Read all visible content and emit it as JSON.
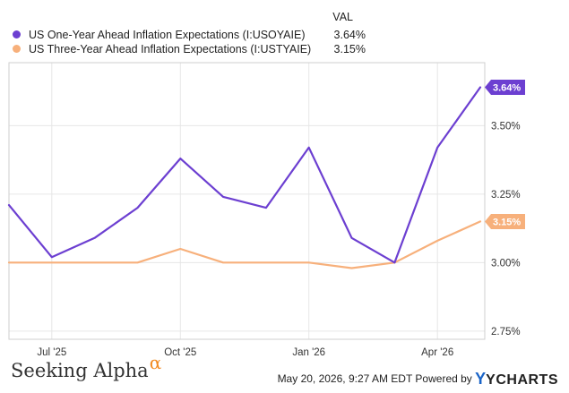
{
  "legend": {
    "header": "VAL",
    "items": [
      {
        "label": "US One-Year Ahead Inflation Expectations (I:USOYAIE)",
        "value": "3.64%",
        "color": "#6c3fd1"
      },
      {
        "label": "US Three-Year Ahead Inflation Expectations (I:USTYAIE)",
        "value": "3.15%",
        "color": "#f7b07b"
      }
    ]
  },
  "chart_data": {
    "type": "line",
    "x": [
      "2025-06",
      "2025-07",
      "2025-08",
      "2025-09",
      "2025-10",
      "2025-11",
      "2025-12",
      "2026-01",
      "2026-02",
      "2026-03",
      "2026-04",
      "2026-05"
    ],
    "series": [
      {
        "name": "US One-Year Ahead Inflation Expectations (I:USOYAIE)",
        "color": "#6c3fd1",
        "values": [
          3.21,
          3.02,
          3.09,
          3.2,
          3.38,
          3.24,
          3.2,
          3.42,
          3.09,
          3.0,
          3.42,
          3.64
        ],
        "end_label": "3.64%"
      },
      {
        "name": "US Three-Year Ahead Inflation Expectations (I:USTYAIE)",
        "color": "#f7b07b",
        "values": [
          3.0,
          3.0,
          3.0,
          3.0,
          3.05,
          3.0,
          3.0,
          3.0,
          2.98,
          3.0,
          3.08,
          3.15
        ],
        "end_label": "3.15%"
      }
    ],
    "x_ticks": [
      {
        "x": "2025-07",
        "label": "Jul '25"
      },
      {
        "x": "2025-10",
        "label": "Oct '25"
      },
      {
        "x": "2026-01",
        "label": "Jan '26"
      },
      {
        "x": "2026-04",
        "label": "Apr '26"
      }
    ],
    "y_ticks": [
      {
        "value": 2.75,
        "label": "2.75%"
      },
      {
        "value": 3.0,
        "label": "3.00%"
      },
      {
        "value": 3.25,
        "label": "3.25%"
      },
      {
        "value": 3.5,
        "label": "3.50%"
      }
    ],
    "ylim": [
      2.72,
      3.73
    ],
    "grid": true
  },
  "footer": {
    "brand": "Seeking Alpha",
    "brand_mark": "α",
    "timestamp": "May 20, 2026, 9:27 AM EDT Powered by",
    "provider": "YCHARTS",
    "provider_mark": "Y"
  }
}
